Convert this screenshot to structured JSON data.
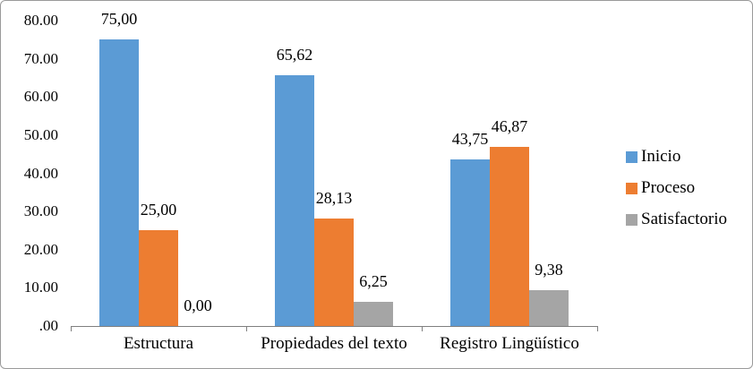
{
  "chart_data": {
    "type": "bar",
    "title": "",
    "xlabel": "",
    "ylabel": "",
    "categories": [
      "Estructura",
      "Propiedades del texto",
      "Registro Lingüístico"
    ],
    "series": [
      {
        "name": "Inicio",
        "color": "#5B9BD5",
        "values": [
          75.0,
          65.62,
          43.75
        ],
        "value_labels": [
          "75,00",
          "65,62",
          "43,75"
        ]
      },
      {
        "name": "Proceso",
        "color": "#ED7D31",
        "values": [
          25.0,
          28.13,
          46.87
        ],
        "value_labels": [
          "25,00",
          "28,13",
          "46,87"
        ]
      },
      {
        "name": "Satisfactorio",
        "color": "#A5A5A5",
        "values": [
          0.0,
          6.25,
          9.38
        ],
        "value_labels": [
          "0,00",
          "6,25",
          "9,38"
        ]
      }
    ],
    "ylim": [
      0,
      80
    ],
    "yticks": [
      ".00",
      "10.00",
      "20.00",
      "30.00",
      "40.00",
      "50.00",
      "60.00",
      "70.00",
      "80.00"
    ],
    "grid": false,
    "legend_position": "right",
    "colors": {
      "axis": "#7f7f7f",
      "chart_border": "#9a9a9a",
      "background": "#ffffff",
      "text": "#000000"
    }
  }
}
